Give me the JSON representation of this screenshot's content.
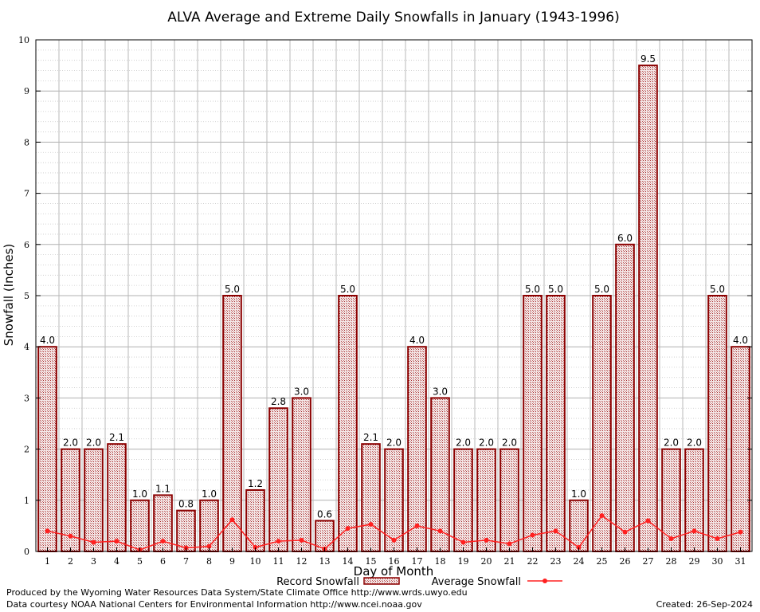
{
  "chart_data": {
    "type": "bar",
    "title": "ALVA Average and Extreme Daily Snowfalls in January (1943-1996)",
    "xlabel": "Day of Month",
    "ylabel": "Snowfall (Inches)",
    "ylim": [
      0,
      10
    ],
    "yticks": [
      0,
      1,
      2,
      3,
      4,
      5,
      6,
      7,
      8,
      9,
      10
    ],
    "categories": [
      "1",
      "2",
      "3",
      "4",
      "5",
      "6",
      "7",
      "8",
      "9",
      "10",
      "11",
      "12",
      "13",
      "14",
      "15",
      "16",
      "17",
      "18",
      "19",
      "20",
      "21",
      "22",
      "23",
      "24",
      "25",
      "26",
      "27",
      "28",
      "29",
      "30",
      "31"
    ],
    "series": [
      {
        "name": "Record Snowfall",
        "type": "bar",
        "values": [
          4.0,
          2.0,
          2.0,
          2.1,
          1.0,
          1.1,
          0.8,
          1.0,
          5.0,
          1.2,
          2.8,
          3.0,
          0.6,
          5.0,
          2.1,
          2.0,
          4.0,
          3.0,
          2.0,
          2.0,
          2.0,
          5.0,
          5.0,
          1.0,
          5.0,
          6.0,
          9.5,
          2.0,
          2.0,
          5.0,
          4.0
        ],
        "labels": [
          "4.0",
          "2.0",
          "2.0",
          "2.1",
          "1.0",
          "1.1",
          "0.8",
          "1.0",
          "5.0",
          "1.2",
          "2.8",
          "3.0",
          "0.6",
          "5.0",
          "2.1",
          "2.0",
          "4.0",
          "3.0",
          "2.0",
          "2.0",
          "2.0",
          "5.0",
          "5.0",
          "1.0",
          "5.0",
          "6.0",
          "9.5",
          "2.0",
          "2.0",
          "5.0",
          "4.0"
        ],
        "color": "#8b0000"
      },
      {
        "name": "Average Snowfall",
        "type": "line",
        "values": [
          0.4,
          0.3,
          0.18,
          0.2,
          0.03,
          0.2,
          0.07,
          0.1,
          0.62,
          0.08,
          0.2,
          0.22,
          0.05,
          0.45,
          0.53,
          0.22,
          0.5,
          0.4,
          0.18,
          0.22,
          0.15,
          0.32,
          0.4,
          0.08,
          0.7,
          0.38,
          0.6,
          0.25,
          0.4,
          0.25,
          0.38
        ],
        "color": "#ff2020"
      }
    ],
    "grid": true,
    "legend_position": "bottom-center"
  },
  "footer": {
    "produced_by": "Produced by the Wyoming Water Resources Data System/State Climate Office http://www.wrds.uwyo.edu",
    "data_courtesy": "Data courtesy NOAA National Centers for Environmental Information http://www.ncei.noaa.gov",
    "created": "Created:  26-Sep-2024"
  }
}
